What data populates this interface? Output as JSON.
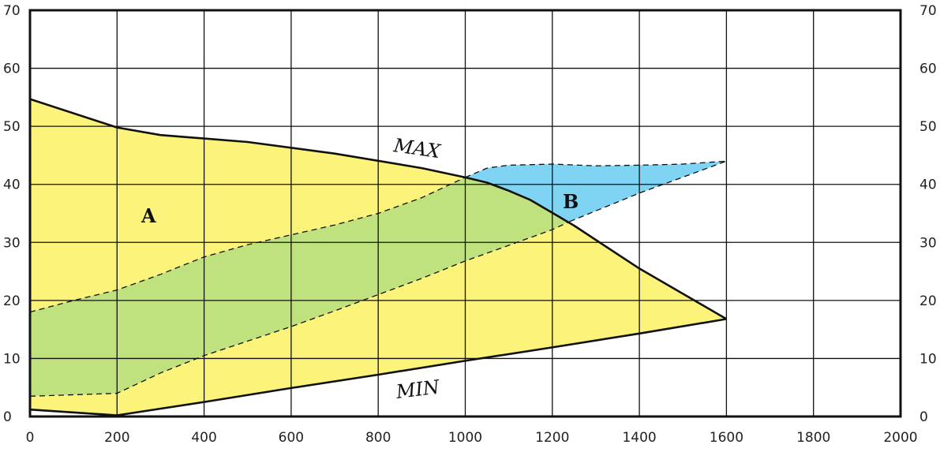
{
  "chart_data": {
    "type": "area",
    "xlim": [
      0,
      2000
    ],
    "ylim": [
      0,
      70
    ],
    "x_ticks": [
      0,
      200,
      400,
      600,
      800,
      1000,
      1200,
      1400,
      1600,
      1800,
      2000
    ],
    "y_ticks": [
      0,
      10,
      20,
      30,
      40,
      50,
      60,
      70
    ],
    "y_ticks_right": [
      0,
      10,
      20,
      30,
      40,
      50,
      60,
      70
    ],
    "grid": true,
    "colors": {
      "region_a": "#fbf37a",
      "region_b": "#7fd3f3",
      "overlap_band": "#c0e27e",
      "line": "#111111",
      "grid": "#111111"
    },
    "labels": {
      "max": "MAX",
      "min": "MIN",
      "region_a": "A",
      "region_b": "B"
    },
    "curves": {
      "max": [
        [
          0,
          54.7
        ],
        [
          200,
          49.8
        ],
        [
          300,
          48.5
        ],
        [
          500,
          47.3
        ],
        [
          700,
          45.3
        ],
        [
          900,
          42.8
        ],
        [
          1000,
          41.2
        ],
        [
          1050,
          40.3
        ],
        [
          1100,
          38.9
        ],
        [
          1150,
          37.3
        ],
        [
          1200,
          35.1
        ],
        [
          1250,
          32.9
        ],
        [
          1400,
          25.5
        ],
        [
          1600,
          16.8
        ]
      ],
      "min": [
        [
          0,
          1.2
        ],
        [
          200,
          0.2
        ],
        [
          400,
          2.5
        ],
        [
          600,
          4.9
        ],
        [
          800,
          7.2
        ],
        [
          1000,
          9.6
        ],
        [
          1200,
          11.9
        ],
        [
          1400,
          14.3
        ],
        [
          1600,
          16.8
        ]
      ],
      "band_upper": [
        [
          0,
          18
        ],
        [
          100,
          20
        ],
        [
          200,
          21.8
        ],
        [
          300,
          24.5
        ],
        [
          400,
          27.5
        ],
        [
          500,
          29.6
        ],
        [
          600,
          31.3
        ],
        [
          700,
          33
        ],
        [
          800,
          35
        ],
        [
          900,
          37.7
        ],
        [
          1000,
          41.2
        ]
      ],
      "band_lower": [
        [
          0,
          3.5
        ],
        [
          200,
          4
        ],
        [
          300,
          7.5
        ],
        [
          400,
          10.5
        ],
        [
          500,
          13
        ],
        [
          600,
          15.5
        ],
        [
          700,
          18.2
        ],
        [
          800,
          21
        ],
        [
          900,
          23.8
        ],
        [
          1000,
          26.8
        ],
        [
          1100,
          29.5
        ],
        [
          1200,
          32.2
        ],
        [
          1240,
          33.6
        ]
      ],
      "b_upper": [
        [
          1000,
          41.2
        ],
        [
          1050,
          42.8
        ],
        [
          1100,
          43.3
        ],
        [
          1200,
          43.5
        ],
        [
          1300,
          43.2
        ],
        [
          1400,
          43.3
        ],
        [
          1500,
          43.5
        ],
        [
          1600,
          44
        ]
      ],
      "b_lower": [
        [
          1240,
          33.6
        ],
        [
          1400,
          38.5
        ],
        [
          1600,
          44
        ]
      ]
    }
  }
}
